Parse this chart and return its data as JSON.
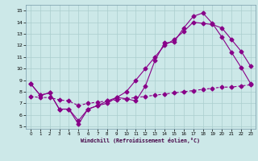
{
  "xlabel": "Windchill (Refroidissement éolien,°C)",
  "background_color": "#cce8e8",
  "grid_color": "#aacece",
  "line_color": "#880088",
  "xlim": [
    -0.5,
    23.5
  ],
  "ylim": [
    4.8,
    15.5
  ],
  "xticks": [
    0,
    1,
    2,
    3,
    4,
    5,
    6,
    7,
    8,
    9,
    10,
    11,
    12,
    13,
    14,
    15,
    16,
    17,
    18,
    19,
    20,
    21,
    22,
    23
  ],
  "yticks": [
    5,
    6,
    7,
    8,
    9,
    10,
    11,
    12,
    13,
    14,
    15
  ],
  "series1_x": [
    0,
    1,
    2,
    3,
    4,
    5,
    6,
    7,
    8,
    9,
    10,
    11,
    12,
    13,
    14,
    15,
    16,
    17,
    18,
    19,
    20,
    21,
    22,
    23
  ],
  "series1_y": [
    8.7,
    7.7,
    7.9,
    6.5,
    6.5,
    5.2,
    6.5,
    6.8,
    7.2,
    7.5,
    7.4,
    7.2,
    8.5,
    10.7,
    12.2,
    12.3,
    13.5,
    14.5,
    14.8,
    13.9,
    12.7,
    11.4,
    10.1,
    8.7
  ],
  "series2_x": [
    0,
    1,
    2,
    3,
    4,
    5,
    6,
    7,
    8,
    9,
    10,
    11,
    12,
    13,
    14,
    15,
    16,
    17,
    18,
    19,
    20,
    21,
    22,
    23
  ],
  "series2_y": [
    8.7,
    7.7,
    7.9,
    6.5,
    6.5,
    5.5,
    6.5,
    6.8,
    7.0,
    7.5,
    8.0,
    9.0,
    10.0,
    11.0,
    12.0,
    12.5,
    13.2,
    14.0,
    13.9,
    13.8,
    13.5,
    12.5,
    11.5,
    10.2
  ],
  "series3_x": [
    0,
    1,
    2,
    3,
    4,
    5,
    6,
    7,
    8,
    9,
    10,
    11,
    12,
    13,
    14,
    15,
    16,
    17,
    18,
    19,
    20,
    21,
    22,
    23
  ],
  "series3_y": [
    7.6,
    7.5,
    7.5,
    7.3,
    7.2,
    6.8,
    7.0,
    7.1,
    7.2,
    7.3,
    7.4,
    7.5,
    7.6,
    7.7,
    7.8,
    7.9,
    8.0,
    8.1,
    8.2,
    8.3,
    8.4,
    8.4,
    8.5,
    8.6
  ]
}
